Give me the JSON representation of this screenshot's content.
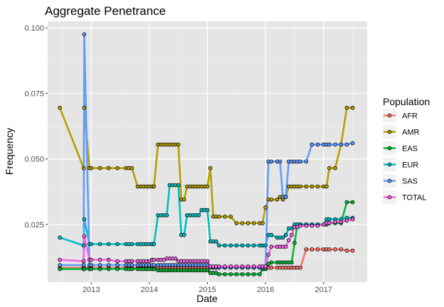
{
  "chart_data": {
    "type": "line",
    "title": "Aggregate Penetrance",
    "xlabel": "Date",
    "ylabel": "Frequency",
    "x_tick_labels": [
      "2013",
      "2014",
      "2015",
      "2016",
      "2017"
    ],
    "x_ticks": [
      2013.0,
      2014.0,
      2015.0,
      2016.0,
      2017.0
    ],
    "xlim": [
      2012.25,
      2017.75
    ],
    "y_tick_labels": [
      "0.025",
      "0.050",
      "0.075",
      "0.100"
    ],
    "y_ticks": [
      0.025,
      0.05,
      0.075,
      0.1
    ],
    "ylim": [
      0.003,
      0.1025
    ],
    "grid": true,
    "background": "#e5e5e5",
    "legend": {
      "title": "Population",
      "position": "right"
    },
    "x": [
      2012.46,
      2012.87,
      2012.88,
      2012.97,
      2013.0,
      2013.15,
      2013.3,
      2013.45,
      2013.6,
      2013.65,
      2013.7,
      2013.8,
      2013.85,
      2013.9,
      2013.95,
      2014.0,
      2014.05,
      2014.08,
      2014.15,
      2014.2,
      2014.25,
      2014.3,
      2014.35,
      2014.4,
      2014.45,
      2014.5,
      2014.55,
      2014.6,
      2014.65,
      2014.7,
      2014.75,
      2014.8,
      2014.85,
      2014.9,
      2014.95,
      2015.0,
      2015.05,
      2015.1,
      2015.15,
      2015.2,
      2015.3,
      2015.4,
      2015.5,
      2015.6,
      2015.7,
      2015.8,
      2015.9,
      2015.95,
      2016.0,
      2016.05,
      2016.1,
      2016.2,
      2016.25,
      2016.3,
      2016.35,
      2016.4,
      2016.45,
      2016.5,
      2016.55,
      2016.6,
      2016.7,
      2016.8,
      2016.9,
      2017.0,
      2017.05,
      2017.1,
      2017.2,
      2017.3,
      2017.4,
      2017.5
    ],
    "series": [
      {
        "name": "AFR",
        "color": "#F8766D",
        "values": [
          0.0085,
          0.0085,
          0.0085,
          0.0085,
          0.0085,
          0.0085,
          0.0085,
          0.0085,
          0.0085,
          0.0085,
          0.0085,
          0.0085,
          0.0085,
          0.0085,
          0.0085,
          0.0085,
          0.0085,
          0.0085,
          0.0085,
          0.0085,
          0.0085,
          0.0085,
          0.0085,
          0.0085,
          0.0085,
          0.0085,
          0.0085,
          0.0085,
          0.0085,
          0.0085,
          0.0085,
          0.0085,
          0.0085,
          0.0085,
          0.0085,
          0.0085,
          0.0085,
          0.0085,
          0.0085,
          0.0085,
          0.0085,
          0.0085,
          0.0085,
          0.0085,
          0.0085,
          0.0085,
          0.0085,
          0.0085,
          0.0085,
          0.0085,
          0.0085,
          0.0085,
          0.0085,
          0.0085,
          0.0085,
          0.0085,
          0.0085,
          0.0085,
          0.0085,
          0.0085,
          0.0155,
          0.0155,
          0.0155,
          0.0155,
          0.0155,
          0.0155,
          0.0155,
          0.0155,
          0.015,
          0.015
        ]
      },
      {
        "name": "AMR",
        "color": "#B79F00",
        "values": [
          0.0695,
          0.0465,
          0.0695,
          0.0465,
          0.0465,
          0.0465,
          0.0465,
          0.0465,
          0.0465,
          0.0465,
          0.0465,
          0.0395,
          0.0395,
          0.0395,
          0.0395,
          0.0395,
          0.0395,
          0.0395,
          0.0555,
          0.0555,
          0.0555,
          0.0555,
          0.0555,
          0.0555,
          0.0555,
          0.0555,
          0.0345,
          0.0345,
          0.0395,
          0.0395,
          0.0395,
          0.0395,
          0.0395,
          0.0395,
          0.0395,
          0.0395,
          0.0465,
          0.028,
          0.028,
          0.028,
          0.028,
          0.028,
          0.0255,
          0.0255,
          0.0255,
          0.0255,
          0.0255,
          0.0255,
          0.0315,
          0.0345,
          0.0345,
          0.0345,
          0.0355,
          0.0345,
          0.0355,
          0.0395,
          0.0395,
          0.0395,
          0.0395,
          0.0395,
          0.0395,
          0.0395,
          0.0395,
          0.0395,
          0.0395,
          0.0465,
          0.0465,
          0.0555,
          0.0695,
          0.0695
        ]
      },
      {
        "name": "EAS",
        "color": "#00BA38",
        "values": [
          0.008,
          0.008,
          0.008,
          0.008,
          0.008,
          0.008,
          0.008,
          0.008,
          0.008,
          0.008,
          0.008,
          0.008,
          0.008,
          0.008,
          0.008,
          0.008,
          0.008,
          0.008,
          0.0075,
          0.0075,
          0.0075,
          0.0075,
          0.0075,
          0.0075,
          0.0075,
          0.0075,
          0.0075,
          0.0075,
          0.0075,
          0.0075,
          0.0075,
          0.0075,
          0.0075,
          0.0075,
          0.0075,
          0.0075,
          0.0065,
          0.0065,
          0.0065,
          0.006,
          0.006,
          0.006,
          0.006,
          0.006,
          0.006,
          0.006,
          0.006,
          0.008,
          0.008,
          0.01,
          0.0105,
          0.0105,
          0.0105,
          0.0105,
          0.0105,
          0.0105,
          0.0105,
          0.018,
          0.025,
          0.025,
          0.025,
          0.025,
          0.025,
          0.025,
          0.025,
          0.0255,
          0.0255,
          0.0255,
          0.0335,
          0.0335
        ]
      },
      {
        "name": "EUR",
        "color": "#00BFC4",
        "values": [
          0.02,
          0.017,
          0.027,
          0.0175,
          0.0175,
          0.0175,
          0.0175,
          0.0175,
          0.0175,
          0.0175,
          0.0175,
          0.0175,
          0.0175,
          0.0175,
          0.0175,
          0.0175,
          0.0175,
          0.0175,
          0.0285,
          0.0285,
          0.0285,
          0.0285,
          0.04,
          0.04,
          0.04,
          0.04,
          0.021,
          0.021,
          0.0285,
          0.0285,
          0.0285,
          0.0285,
          0.0285,
          0.0305,
          0.0305,
          0.0305,
          0.0185,
          0.0185,
          0.0185,
          0.017,
          0.017,
          0.017,
          0.017,
          0.017,
          0.017,
          0.017,
          0.017,
          0.017,
          0.017,
          0.021,
          0.021,
          0.02,
          0.02,
          0.02,
          0.021,
          0.0235,
          0.0235,
          0.025,
          0.025,
          0.025,
          0.025,
          0.025,
          0.025,
          0.025,
          0.027,
          0.027,
          0.027,
          0.027,
          0.0275,
          0.0275
        ]
      },
      {
        "name": "SAS",
        "color": "#619CFF",
        "values": [
          0.0095,
          0.0095,
          0.0975,
          0.0095,
          0.0095,
          0.0095,
          0.0095,
          0.0095,
          0.0095,
          0.0095,
          0.0095,
          0.0095,
          0.0095,
          0.0095,
          0.0095,
          0.0095,
          0.0095,
          0.0095,
          0.0095,
          0.0095,
          0.0095,
          0.0095,
          0.0095,
          0.0095,
          0.0095,
          0.0095,
          0.0095,
          0.0095,
          0.0095,
          0.0095,
          0.0095,
          0.0095,
          0.0095,
          0.0095,
          0.0095,
          0.0095,
          0.0085,
          0.0085,
          0.0085,
          0.0085,
          0.0085,
          0.0085,
          0.0085,
          0.0085,
          0.0085,
          0.0085,
          0.0085,
          0.0085,
          0.0085,
          0.049,
          0.049,
          0.049,
          0.049,
          0.0355,
          0.0355,
          0.049,
          0.049,
          0.049,
          0.049,
          0.049,
          0.049,
          0.0555,
          0.0555,
          0.0555,
          0.0555,
          0.0555,
          0.0555,
          0.0555,
          0.0555,
          0.056
        ]
      },
      {
        "name": "TOTAL",
        "color": "#F564E3",
        "values": [
          0.0115,
          0.011,
          0.0205,
          0.0115,
          0.0115,
          0.0115,
          0.0115,
          0.011,
          0.011,
          0.011,
          0.011,
          0.011,
          0.011,
          0.011,
          0.011,
          0.011,
          0.0115,
          0.0115,
          0.0115,
          0.0115,
          0.0115,
          0.012,
          0.012,
          0.012,
          0.012,
          0.011,
          0.011,
          0.011,
          0.011,
          0.011,
          0.011,
          0.011,
          0.011,
          0.011,
          0.011,
          0.011,
          0.009,
          0.009,
          0.009,
          0.009,
          0.009,
          0.009,
          0.009,
          0.009,
          0.009,
          0.009,
          0.009,
          0.009,
          0.009,
          0.0135,
          0.0165,
          0.0165,
          0.0165,
          0.0165,
          0.0165,
          0.019,
          0.021,
          0.024,
          0.024,
          0.0245,
          0.0245,
          0.0245,
          0.0245,
          0.025,
          0.0255,
          0.0255,
          0.026,
          0.026,
          0.0265,
          0.027
        ]
      }
    ]
  }
}
